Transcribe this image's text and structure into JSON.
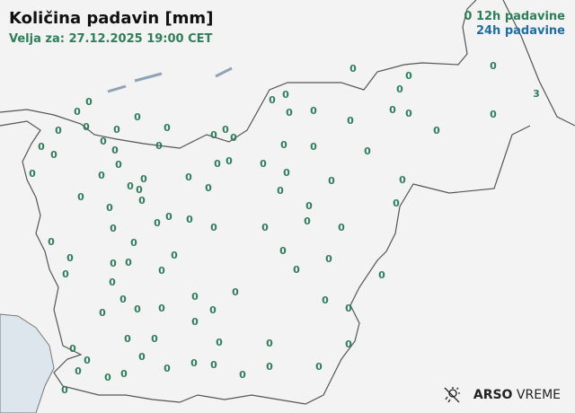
{
  "header": {
    "title": "Količina padavin [mm]",
    "valid_for": "Velja za: 27.12.2025 19:00 CET"
  },
  "legend": {
    "marker": "0",
    "label_12h": "12h padavine",
    "label_24h": "24h padavine"
  },
  "colors": {
    "value_12h": "#2e7d5b",
    "value_24h": "#1f6ea3",
    "border": "#555555",
    "sea": "#dde6ec"
  },
  "logo": {
    "brand": "ARSO",
    "product": "VREME",
    "icon": "sun-rain-icon"
  },
  "stations": {
    "values": [
      "0",
      "0",
      "0",
      "0",
      "0",
      "0",
      "0",
      "0",
      "0",
      "0",
      "0",
      "0",
      "0",
      "3",
      "0",
      "0",
      "0",
      "0",
      "0",
      "0",
      "0",
      "0",
      "0",
      "0",
      "0",
      "0",
      "0",
      "0",
      "0",
      "0",
      "0",
      "0",
      "0",
      "0",
      "0",
      "0",
      "0",
      "0",
      "0",
      "0",
      "0",
      "0",
      "0",
      "0",
      "0",
      "0",
      "0",
      "0",
      "0",
      "0",
      "0",
      "0",
      "0",
      "0",
      "0",
      "0",
      "0",
      "0",
      "0",
      "0",
      "0",
      "0",
      "0",
      "0",
      "0",
      "0",
      "0",
      "0",
      "0",
      "0",
      "0",
      "0",
      "0",
      "0",
      "0",
      "0",
      "0",
      "0",
      "0",
      "0",
      "0",
      "0",
      "0",
      "0",
      "0",
      "0",
      "0",
      "0",
      "0",
      "0",
      "0",
      "0",
      "0",
      "0",
      "0",
      "0",
      "0",
      "0",
      "0",
      "0",
      "0"
    ]
  }
}
